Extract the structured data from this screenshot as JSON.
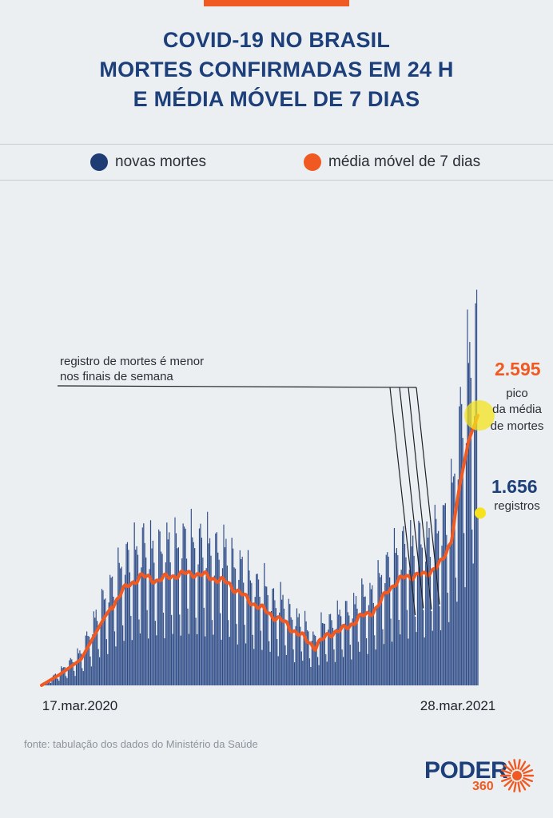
{
  "title": {
    "line1": "COVID-19 NO BRASIL",
    "line2": "MORTES CONFIRMADAS EM 24 H",
    "line3": "E MÉDIA MÓVEL DE 7 DIAS"
  },
  "legend": {
    "daily": {
      "label": "novas mortes",
      "color": "#1f3d74"
    },
    "average": {
      "label": "média móvel de 7 dias",
      "color": "#f05a22"
    }
  },
  "annotations": {
    "weekend_line1": "registro de mortes é menor",
    "weekend_line2": "nos finais de semana",
    "peak_value": "2.595",
    "peak_line1": "pico",
    "peak_line2": "da média",
    "peak_line3": "de mortes",
    "last_value": "1.656",
    "last_label": "registros"
  },
  "source": "fonte: tabulação dos dados do Ministério da Saúde",
  "logo": {
    "word": "PODER",
    "number": "360"
  },
  "chart_data": {
    "type": "bar",
    "start_date": "17.mar.2020",
    "end_date": "28.mar.2021",
    "x_tick_labels": [
      "17.mar.2020",
      "28.mar.2021"
    ],
    "ylim": [
      0,
      4300
    ],
    "grid": false,
    "legend_position": "top",
    "series": [
      {
        "name": "novas mortes",
        "type": "bar",
        "color": "#1f3d74",
        "profile": "daily_with_weekly_cycle"
      },
      {
        "name": "média móvel de 7 dias",
        "type": "line",
        "color": "#f05a22"
      }
    ],
    "anchors": [
      {
        "date": "2020-03-17",
        "avg": 1
      },
      {
        "date": "2020-04-01",
        "avg": 100
      },
      {
        "date": "2020-04-20",
        "avg": 250
      },
      {
        "date": "2020-05-10",
        "avg": 650
      },
      {
        "date": "2020-05-25",
        "avg": 900
      },
      {
        "date": "2020-06-10",
        "avg": 1050
      },
      {
        "date": "2020-06-25",
        "avg": 1010
      },
      {
        "date": "2020-07-10",
        "avg": 1060
      },
      {
        "date": "2020-07-25",
        "avg": 1080
      },
      {
        "date": "2020-08-10",
        "avg": 1040
      },
      {
        "date": "2020-08-25",
        "avg": 980
      },
      {
        "date": "2020-09-10",
        "avg": 830
      },
      {
        "date": "2020-09-25",
        "avg": 720
      },
      {
        "date": "2020-10-10",
        "avg": 620
      },
      {
        "date": "2020-10-25",
        "avg": 490
      },
      {
        "date": "2020-11-08",
        "avg": 370
      },
      {
        "date": "2020-11-20",
        "avg": 500
      },
      {
        "date": "2020-12-01",
        "avg": 530
      },
      {
        "date": "2020-12-15",
        "avg": 640
      },
      {
        "date": "2020-12-31",
        "avg": 740
      },
      {
        "date": "2021-01-10",
        "avg": 930
      },
      {
        "date": "2021-01-25",
        "avg": 1050
      },
      {
        "date": "2021-02-10",
        "avg": 1060
      },
      {
        "date": "2021-02-25",
        "avg": 1180
      },
      {
        "date": "2021-03-05",
        "avg": 1400
      },
      {
        "date": "2021-03-12",
        "avg": 1900
      },
      {
        "date": "2021-03-20",
        "avg": 2350
      },
      {
        "date": "2021-03-28",
        "avg": 2595
      }
    ],
    "peak_average": 2595,
    "last_daily": 1656
  }
}
